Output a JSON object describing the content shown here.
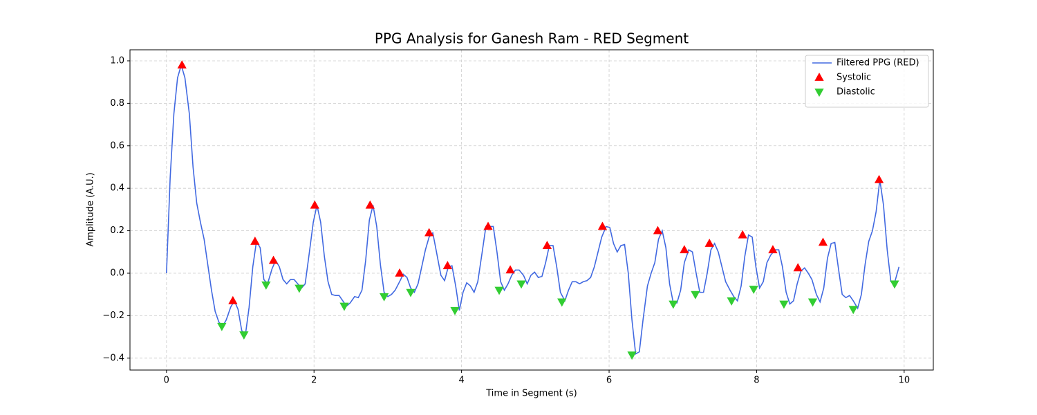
{
  "chart_data": {
    "type": "line",
    "title": "PPG Analysis for Ganesh Ram - RED Segment",
    "xlabel": "Time in Segment (s)",
    "ylabel": "Amplitude (A.U.)",
    "xlim": [
      -0.495,
      10.395
    ],
    "ylim": [
      -0.456,
      1.052
    ],
    "xticks": [
      0,
      2,
      4,
      6,
      8,
      10
    ],
    "yticks": [
      {
        "value": -0.4,
        "label": "−0.4"
      },
      {
        "value": -0.2,
        "label": "−0.2"
      },
      {
        "value": 0,
        "label": "0.0"
      },
      0.2,
      0.4,
      0.6,
      0.8,
      {
        "value": 1.0,
        "label": "1.0"
      }
    ],
    "grid": true,
    "legend": "upper right",
    "x": [
      0,
      0.05,
      0.1,
      0.15,
      0.2,
      0.25,
      0.31,
      0.36,
      0.41,
      0.46,
      0.51,
      0.56,
      0.61,
      0.66,
      0.71,
      0.76,
      0.81,
      0.87,
      0.92,
      0.97,
      1.02,
      1.07,
      1.12,
      1.17,
      1.22,
      1.27,
      1.32,
      1.37,
      1.43,
      1.48,
      1.53,
      1.58,
      1.63,
      1.68,
      1.73,
      1.78,
      1.83,
      1.88,
      1.93,
      1.99,
      2.04,
      2.09,
      2.14,
      2.19,
      2.24,
      2.29,
      2.34,
      2.39,
      2.44,
      2.49,
      2.55,
      2.6,
      2.65,
      2.7,
      2.75,
      2.8,
      2.85,
      2.9,
      2.95,
      3.0,
      3.05,
      3.1,
      3.16,
      3.21,
      3.26,
      3.31,
      3.36,
      3.41,
      3.46,
      3.51,
      3.56,
      3.61,
      3.66,
      3.72,
      3.77,
      3.82,
      3.87,
      3.92,
      3.97,
      4.02,
      4.07,
      4.12,
      4.17,
      4.22,
      4.28,
      4.33,
      4.38,
      4.43,
      4.48,
      4.53,
      4.58,
      4.63,
      4.68,
      4.73,
      4.78,
      4.84,
      4.89,
      4.94,
      4.99,
      5.04,
      5.09,
      5.14,
      5.19,
      5.24,
      5.29,
      5.34,
      5.4,
      5.45,
      5.5,
      5.55,
      5.6,
      5.65,
      5.7,
      5.75,
      5.8,
      5.85,
      5.9,
      5.96,
      6.01,
      6.06,
      6.11,
      6.16,
      6.21,
      6.26,
      6.31,
      6.36,
      6.41,
      6.46,
      6.52,
      6.57,
      6.62,
      6.67,
      6.72,
      6.77,
      6.82,
      6.87,
      6.92,
      6.97,
      7.02,
      7.08,
      7.13,
      7.18,
      7.23,
      7.28,
      7.33,
      7.38,
      7.43,
      7.48,
      7.53,
      7.58,
      7.64,
      7.69,
      7.74,
      7.79,
      7.84,
      7.89,
      7.94,
      7.99,
      8.04,
      8.09,
      8.14,
      8.19,
      8.25,
      8.3,
      8.35,
      8.4,
      8.45,
      8.5,
      8.55,
      8.6,
      8.65,
      8.7,
      8.75,
      8.81,
      8.86,
      8.91,
      8.96,
      9.01,
      9.06,
      9.11,
      9.16,
      9.21,
      9.26,
      9.31,
      9.37,
      9.42,
      9.47,
      9.52,
      9.57,
      9.62,
      9.67,
      9.72,
      9.77,
      9.82,
      9.87,
      9.93
    ],
    "series": [
      {
        "name": "Filtered PPG (RED)",
        "color": "#4169e1",
        "values": [
          0.0,
          0.45,
          0.75,
          0.92,
          0.98,
          0.92,
          0.75,
          0.5,
          0.33,
          0.24,
          0.16,
          0.04,
          -0.08,
          -0.18,
          -0.23,
          -0.25,
          -0.22,
          -0.16,
          -0.13,
          -0.17,
          -0.27,
          -0.29,
          -0.16,
          0.03,
          0.15,
          0.12,
          -0.03,
          -0.05,
          0.02,
          0.06,
          0.03,
          -0.03,
          -0.05,
          -0.03,
          -0.03,
          -0.05,
          -0.07,
          -0.05,
          0.08,
          0.24,
          0.32,
          0.24,
          0.08,
          -0.04,
          -0.1,
          -0.105,
          -0.105,
          -0.13,
          -0.155,
          -0.14,
          -0.11,
          -0.115,
          -0.08,
          0.06,
          0.25,
          0.32,
          0.22,
          0.04,
          -0.09,
          -0.11,
          -0.1,
          -0.08,
          -0.04,
          -0.005,
          -0.02,
          -0.07,
          -0.09,
          -0.05,
          0.03,
          0.11,
          0.17,
          0.19,
          0.1,
          -0.01,
          -0.035,
          0.03,
          0.035,
          -0.06,
          -0.175,
          -0.09,
          -0.045,
          -0.06,
          -0.09,
          -0.04,
          0.1,
          0.22,
          0.22,
          0.22,
          0.1,
          -0.04,
          -0.08,
          -0.05,
          -0.01,
          0.015,
          0.015,
          -0.01,
          -0.05,
          -0.01,
          0.005,
          -0.02,
          -0.015,
          0.05,
          0.13,
          0.13,
          0.03,
          -0.09,
          -0.13,
          -0.08,
          -0.04,
          -0.04,
          -0.05,
          -0.04,
          -0.035,
          -0.02,
          0.03,
          0.1,
          0.17,
          0.22,
          0.215,
          0.14,
          0.1,
          0.13,
          0.135,
          0.0,
          -0.22,
          -0.38,
          -0.37,
          -0.22,
          -0.06,
          0.0,
          0.05,
          0.16,
          0.2,
          0.12,
          -0.05,
          -0.14,
          -0.14,
          -0.08,
          0.05,
          0.11,
          0.1,
          0.0,
          -0.09,
          -0.09,
          0.0,
          0.11,
          0.14,
          0.1,
          0.03,
          -0.04,
          -0.08,
          -0.11,
          -0.13,
          -0.06,
          0.08,
          0.18,
          0.17,
          0.03,
          -0.07,
          -0.04,
          0.05,
          0.085,
          0.11,
          0.11,
          0.03,
          -0.09,
          -0.145,
          -0.13,
          -0.05,
          0.01,
          0.025,
          0.0,
          -0.03,
          -0.1,
          -0.135,
          -0.07,
          0.07,
          0.14,
          0.145,
          0.02,
          -0.1,
          -0.115,
          -0.105,
          -0.13,
          -0.165,
          -0.1,
          0.04,
          0.15,
          0.2,
          0.29,
          0.44,
          0.32,
          0.11,
          -0.04,
          -0.045,
          0.03
        ]
      }
    ],
    "markers": [
      {
        "name": "Systolic",
        "color": "#ff0000",
        "marker": "triangle-up",
        "x": [
          0.21,
          0.9,
          1.2,
          1.45,
          2.01,
          2.76,
          3.16,
          3.56,
          3.81,
          4.36,
          4.66,
          5.16,
          5.91,
          6.66,
          7.02,
          7.36,
          7.81,
          8.22,
          8.56,
          8.9,
          9.66
        ],
        "values": [
          0.98,
          -0.13,
          0.15,
          0.06,
          0.32,
          0.32,
          0.0,
          0.19,
          0.035,
          0.22,
          0.015,
          0.13,
          0.22,
          0.2,
          0.11,
          0.14,
          0.18,
          0.11,
          0.025,
          0.145,
          0.44
        ]
      },
      {
        "name": "Diastolic",
        "color": "#32cd32",
        "marker": "triangle-down",
        "x": [
          0.75,
          1.05,
          1.35,
          1.8,
          2.41,
          2.95,
          3.31,
          3.91,
          4.51,
          4.81,
          5.36,
          6.31,
          6.87,
          7.17,
          7.66,
          7.96,
          8.37,
          8.76,
          9.31,
          9.87
        ],
        "values": [
          -0.25,
          -0.29,
          -0.055,
          -0.07,
          -0.155,
          -0.11,
          -0.09,
          -0.175,
          -0.08,
          -0.05,
          -0.135,
          -0.385,
          -0.145,
          -0.1,
          -0.13,
          -0.075,
          -0.145,
          -0.135,
          -0.17,
          -0.05
        ]
      }
    ]
  }
}
